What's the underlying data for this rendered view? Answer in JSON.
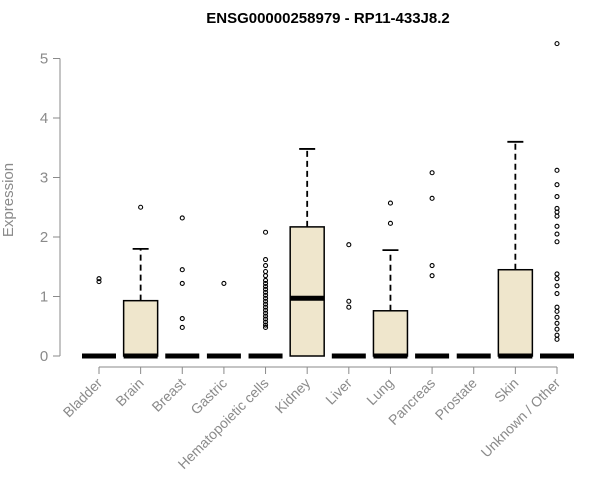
{
  "chart_data": {
    "type": "box",
    "title": "ENSG00000258979 - RP11-433J8.2",
    "ylabel": "Expression",
    "xlabel": "",
    "ylim": [
      0,
      5.3
    ],
    "yticks": [
      0,
      1,
      2,
      3,
      4,
      5
    ],
    "box_fill": "#efe6cc",
    "categories": [
      "Bladder",
      "Brain",
      "Breast",
      "Gastric",
      "Hematopoietic cells",
      "Kidney",
      "Liver",
      "Lung",
      "Pancreas",
      "Prostate",
      "Skin",
      "Unknown / Other"
    ],
    "boxes": [
      {
        "q1": 0,
        "median": 0,
        "q3": 0,
        "whisker_low": 0,
        "whisker_high": 0,
        "outliers": [
          1.25,
          1.3
        ]
      },
      {
        "q1": 0,
        "median": 0,
        "q3": 0.93,
        "whisker_low": 0,
        "whisker_high": 1.8,
        "outliers": [
          2.5
        ]
      },
      {
        "q1": 0,
        "median": 0,
        "q3": 0,
        "whisker_low": 0,
        "whisker_high": 0,
        "outliers": [
          0.48,
          0.63,
          1.22,
          1.45,
          2.32
        ]
      },
      {
        "q1": 0,
        "median": 0,
        "q3": 0,
        "whisker_low": 0,
        "whisker_high": 0,
        "outliers": [
          1.22
        ]
      },
      {
        "q1": 0,
        "median": 0,
        "q3": 0,
        "whisker_low": 0,
        "whisker_high": 0,
        "outliers": [
          0.48,
          0.52,
          0.57,
          0.62,
          0.67,
          0.72,
          0.77,
          0.82,
          0.87,
          0.92,
          0.97,
          1.02,
          1.07,
          1.12,
          1.17,
          1.22,
          1.27,
          1.35,
          1.42,
          1.52,
          1.62,
          2.08
        ]
      },
      {
        "q1": 0,
        "median": 0.97,
        "q3": 2.17,
        "whisker_low": 0,
        "whisker_high": 3.48,
        "outliers": []
      },
      {
        "q1": 0,
        "median": 0,
        "q3": 0,
        "whisker_low": 0,
        "whisker_high": 0,
        "outliers": [
          0.82,
          0.92,
          1.87
        ]
      },
      {
        "q1": 0,
        "median": 0,
        "q3": 0.76,
        "whisker_low": 0,
        "whisker_high": 1.78,
        "outliers": [
          2.23,
          2.57
        ]
      },
      {
        "q1": 0,
        "median": 0,
        "q3": 0,
        "whisker_low": 0,
        "whisker_high": 0,
        "outliers": [
          1.35,
          1.52,
          2.65,
          3.08
        ]
      },
      {
        "q1": 0,
        "median": 0,
        "q3": 0,
        "whisker_low": 0,
        "whisker_high": 0,
        "outliers": []
      },
      {
        "q1": 0,
        "median": 0,
        "q3": 1.45,
        "whisker_low": 0,
        "whisker_high": 3.6,
        "outliers": []
      },
      {
        "q1": 0,
        "median": 0,
        "q3": 0,
        "whisker_low": 0,
        "whisker_high": 0,
        "outliers": [
          0.28,
          0.35,
          0.45,
          0.55,
          0.65,
          0.75,
          0.82,
          1.05,
          1.18,
          1.3,
          1.38,
          1.92,
          2.05,
          2.18,
          2.35,
          2.42,
          2.48,
          2.68,
          2.88,
          3.12,
          5.25
        ]
      }
    ]
  }
}
